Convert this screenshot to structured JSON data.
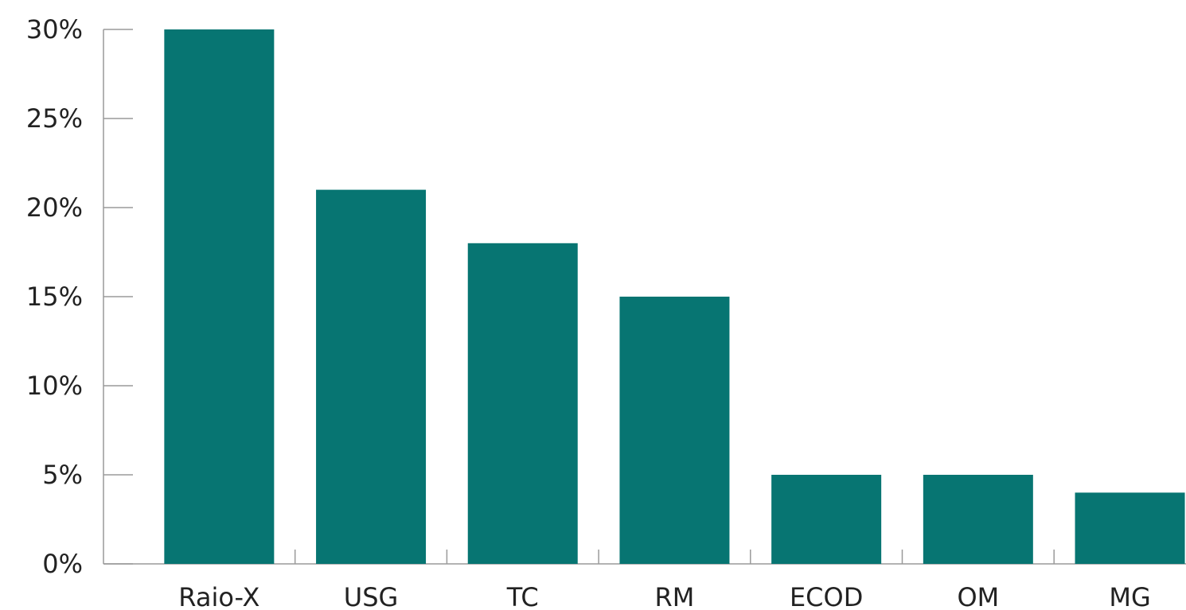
{
  "chart_data": {
    "type": "bar",
    "title": "",
    "xlabel": "",
    "ylabel": "",
    "categories": [
      "Raio-X",
      "USG",
      "TC",
      "RM",
      "ECOD",
      "OM",
      "MG"
    ],
    "values": [
      30,
      21,
      18,
      15,
      5,
      5,
      4
    ],
    "ylim": [
      0,
      30
    ],
    "yticks": [
      0,
      5,
      10,
      15,
      20,
      25,
      30
    ],
    "ytick_labels": [
      "0%",
      "5%",
      "10%",
      "15%",
      "20%",
      "25%",
      "30%"
    ],
    "grid": false,
    "legend": "none",
    "bar_color": "#077572"
  }
}
